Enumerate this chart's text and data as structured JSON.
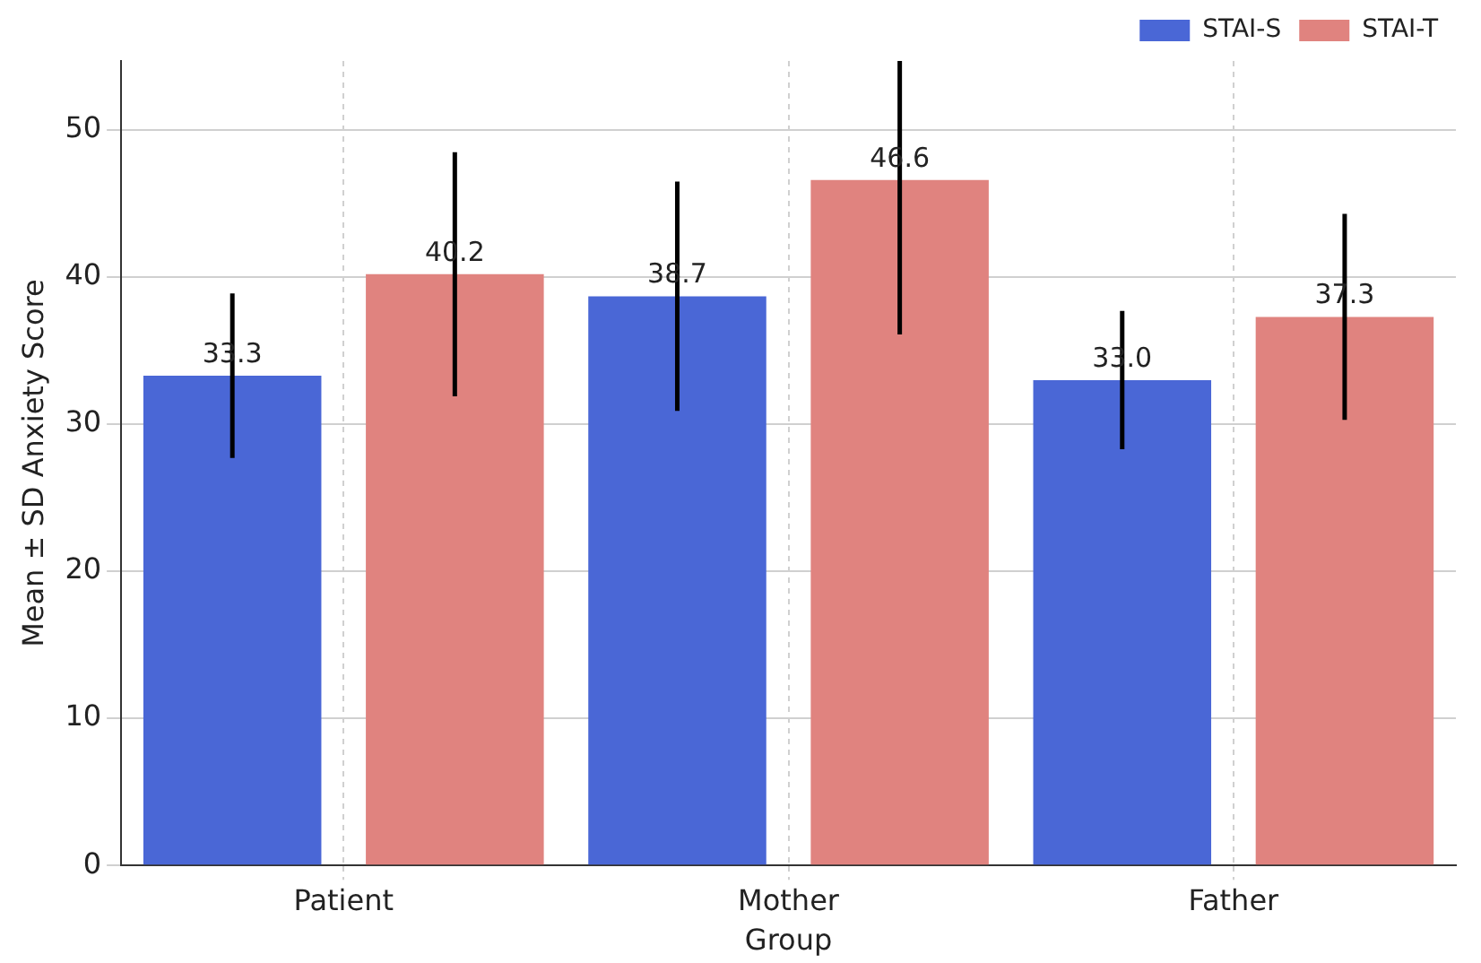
{
  "chart_data": {
    "type": "bar",
    "xlabel": "Group",
    "ylabel": "Mean ± SD Anxiety Score",
    "categories": [
      "Patient",
      "Mother",
      "Father"
    ],
    "series": [
      {
        "name": "STAI-S",
        "color": "#4a67d6",
        "values": [
          33.3,
          38.7,
          33.0
        ],
        "errors": [
          5.6,
          7.8,
          4.7
        ],
        "value_labels": [
          "33.3",
          "38.7",
          "33.0"
        ]
      },
      {
        "name": "STAI-T",
        "color": "#e0837f",
        "values": [
          40.2,
          46.6,
          37.3
        ],
        "errors": [
          8.3,
          [
            36.1,
            54.7
          ],
          7.0
        ],
        "value_labels": [
          "40.2",
          "46.6",
          "37.3"
        ]
      }
    ],
    "ylim": [
      0,
      54.7
    ],
    "yticks": [
      0,
      10,
      20,
      30,
      40,
      50
    ],
    "grid": true,
    "legend": "top right"
  }
}
